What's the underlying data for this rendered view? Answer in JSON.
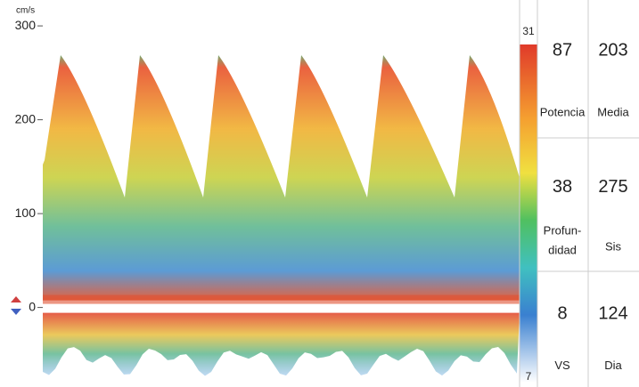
{
  "doppler": {
    "unit": "cm/s",
    "ylim": [
      -80,
      320
    ],
    "yticks": [
      0,
      100,
      200,
      300
    ]
  },
  "color_scale": {
    "max": 31,
    "min": 7
  },
  "readouts": [
    [
      {
        "value": 87,
        "label": [
          "Potencia"
        ]
      },
      {
        "value": 203,
        "label": [
          "Media"
        ]
      }
    ],
    [
      {
        "value": 38,
        "label": [
          "Profun-",
          "didad"
        ]
      },
      {
        "value": 275,
        "label": [
          "Sis"
        ]
      }
    ],
    [
      {
        "value": 8,
        "label": [
          "VS"
        ]
      },
      {
        "value": 124,
        "label": [
          "Dia"
        ]
      }
    ]
  ]
}
